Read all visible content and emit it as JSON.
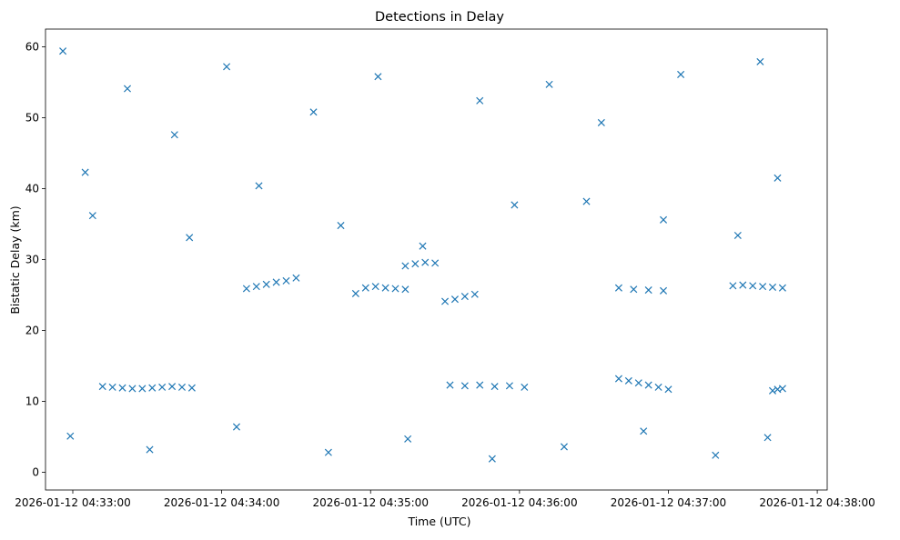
{
  "chart_data": {
    "type": "scatter",
    "title": "Detections in Delay",
    "xlabel": "Time (UTC)",
    "ylabel": "Bistatic Delay (km)",
    "x_axis": {
      "type": "time",
      "range": [
        "2026-01-12 04:32:49",
        "2026-01-12 04:38:04"
      ],
      "ticks": [
        "2026-01-12 04:33:00",
        "2026-01-12 04:34:00",
        "2026-01-12 04:35:00",
        "2026-01-12 04:36:00",
        "2026-01-12 04:37:00",
        "2026-01-12 04:38:00"
      ]
    },
    "y_axis": {
      "range": [
        -2.5,
        62.5
      ],
      "ticks": [
        "0",
        "10",
        "20",
        "30",
        "40",
        "50",
        "60"
      ]
    },
    "marker": "x",
    "color": "#1f77b4",
    "grid": false,
    "legend": "none",
    "series": [
      {
        "name": "",
        "x": [
          "2026-01-12 04:33:12",
          "2026-01-12 04:33:16",
          "2026-01-12 04:33:20",
          "2026-01-12 04:33:24",
          "2026-01-12 04:33:28",
          "2026-01-12 04:33:32",
          "2026-01-12 04:33:36",
          "2026-01-12 04:33:40",
          "2026-01-12 04:33:44",
          "2026-01-12 04:33:48",
          "2026-01-12 04:34:10",
          "2026-01-12 04:34:14",
          "2026-01-12 04:34:18",
          "2026-01-12 04:34:22",
          "2026-01-12 04:34:26",
          "2026-01-12 04:34:30",
          "2026-01-12 04:34:54",
          "2026-01-12 04:34:58",
          "2026-01-12 04:35:02",
          "2026-01-12 04:35:06",
          "2026-01-12 04:35:10",
          "2026-01-12 04:35:14",
          "2026-01-12 04:35:14",
          "2026-01-12 04:35:18",
          "2026-01-12 04:35:22",
          "2026-01-12 04:35:26",
          "2026-01-12 04:35:30",
          "2026-01-12 04:35:34",
          "2026-01-12 04:35:38",
          "2026-01-12 04:35:42",
          "2026-01-12 04:35:32",
          "2026-01-12 04:35:38",
          "2026-01-12 04:35:44",
          "2026-01-12 04:35:50",
          "2026-01-12 04:35:56",
          "2026-01-12 04:36:02",
          "2026-01-12 04:36:40",
          "2026-01-12 04:36:44",
          "2026-01-12 04:36:48",
          "2026-01-12 04:36:52",
          "2026-01-12 04:36:56",
          "2026-01-12 04:37:00",
          "2026-01-12 04:36:40",
          "2026-01-12 04:36:46",
          "2026-01-12 04:36:52",
          "2026-01-12 04:36:58",
          "2026-01-12 04:37:26",
          "2026-01-12 04:37:30",
          "2026-01-12 04:37:34",
          "2026-01-12 04:37:38",
          "2026-01-12 04:37:42",
          "2026-01-12 04:37:46",
          "2026-01-12 04:37:42",
          "2026-01-12 04:37:44",
          "2026-01-12 04:37:46",
          "2026-01-12 04:32:56",
          "2026-01-12 04:33:05",
          "2026-01-12 04:33:22",
          "2026-01-12 04:33:41",
          "2026-01-12 04:34:02",
          "2026-01-12 04:34:37",
          "2026-01-12 04:35:03",
          "2026-01-12 04:35:44",
          "2026-01-12 04:36:12",
          "2026-01-12 04:36:33",
          "2026-01-12 04:37:05",
          "2026-01-12 04:37:37",
          "2026-01-12 04:33:08",
          "2026-01-12 04:33:47",
          "2026-01-12 04:34:15",
          "2026-01-12 04:34:48",
          "2026-01-12 04:35:21",
          "2026-01-12 04:35:58",
          "2026-01-12 04:36:27",
          "2026-01-12 04:36:58",
          "2026-01-12 04:37:28",
          "2026-01-12 04:37:44",
          "2026-01-12 04:32:59",
          "2026-01-12 04:33:31",
          "2026-01-12 04:34:06",
          "2026-01-12 04:34:43",
          "2026-01-12 04:35:15",
          "2026-01-12 04:35:49",
          "2026-01-12 04:36:18",
          "2026-01-12 04:36:50",
          "2026-01-12 04:37:19",
          "2026-01-12 04:37:40"
        ],
        "y": [
          12.1,
          12.0,
          11.9,
          11.8,
          11.8,
          11.9,
          12.0,
          12.1,
          12.0,
          11.9,
          25.9,
          26.2,
          26.5,
          26.8,
          27.0,
          27.4,
          25.2,
          26.0,
          26.2,
          26.0,
          25.9,
          25.8,
          29.1,
          29.4,
          29.6,
          29.5,
          24.1,
          24.4,
          24.8,
          25.1,
          12.3,
          12.2,
          12.3,
          12.1,
          12.2,
          12.0,
          13.2,
          12.9,
          12.6,
          12.3,
          12.0,
          11.7,
          26.0,
          25.8,
          25.7,
          25.6,
          26.3,
          26.4,
          26.3,
          26.2,
          26.1,
          26.0,
          11.5,
          11.7,
          11.8,
          59.4,
          42.3,
          54.1,
          47.6,
          57.2,
          50.8,
          55.8,
          52.4,
          54.7,
          49.3,
          56.1,
          57.9,
          36.2,
          33.1,
          40.4,
          34.8,
          31.9,
          37.7,
          38.2,
          35.6,
          33.4,
          41.5,
          5.1,
          3.2,
          6.4,
          2.8,
          4.7,
          1.9,
          3.6,
          5.8,
          2.4,
          4.9
        ]
      }
    ]
  }
}
